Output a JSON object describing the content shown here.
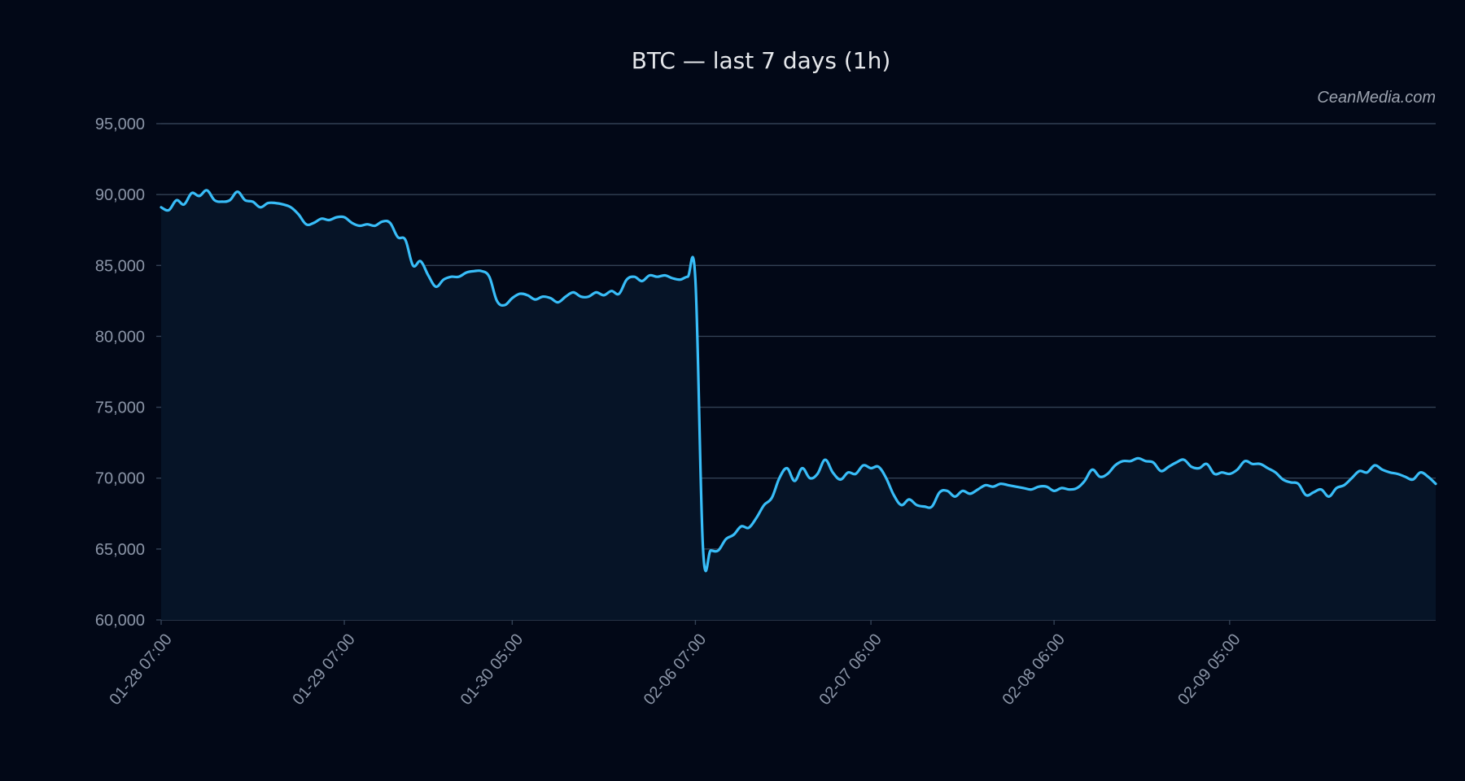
{
  "colors": {
    "background": "#020817",
    "plot_fill": "#061427",
    "line": "#38bdf8",
    "grid": "#334155",
    "tick_text": "#8b95a7",
    "title_text": "#e5e7eb",
    "watermark_text": "#9ca3af"
  },
  "watermark": "CeanMedia.com",
  "chart_data": {
    "type": "area",
    "title": "BTC — last 7 days (1h)",
    "xlabel": "",
    "ylabel": "",
    "ylim": [
      60000,
      95000
    ],
    "grid": true,
    "yticks": [
      60000,
      65000,
      70000,
      75000,
      80000,
      85000,
      90000,
      95000
    ],
    "ytick_labels": [
      "60,000",
      "65,000",
      "70,000",
      "75,000",
      "80,000",
      "85,000",
      "90,000",
      "95,000"
    ],
    "xticks": [
      {
        "index": 0,
        "label": "01-28 07:00"
      },
      {
        "index": 24,
        "label": "01-29 07:00"
      },
      {
        "index": 46,
        "label": "01-30 05:00"
      },
      {
        "index": 70,
        "label": "02-06 07:00"
      },
      {
        "index": 93,
        "label": "02-07 06:00"
      },
      {
        "index": 117,
        "label": "02-08 06:00"
      },
      {
        "index": 140,
        "label": "02-09 05:00"
      }
    ],
    "series": [
      {
        "values": [
          89100,
          88900,
          89600,
          89300,
          90100,
          89900,
          90300,
          89600,
          89500,
          89600,
          90200,
          89600,
          89500,
          89100,
          89400,
          89400,
          89300,
          89100,
          88600,
          87900,
          88000,
          88300,
          88200,
          88400,
          88400,
          88000,
          87800,
          87900,
          87800,
          88100,
          88000,
          87000,
          86800,
          85000,
          85300,
          84300,
          83500,
          84000,
          84200,
          84200,
          84500,
          84600,
          84600,
          84200,
          82500,
          82200,
          82700,
          83000,
          82900,
          82600,
          82800,
          82700,
          82400,
          82800,
          83100,
          82800,
          82800,
          83100,
          82900,
          83200,
          83000,
          84000,
          84200,
          83900,
          84300,
          84200,
          84300,
          84100,
          84000,
          84200,
          84000,
          65000,
          64900,
          64900,
          65700,
          66000,
          66600,
          66500,
          67200,
          68100,
          68600,
          70000,
          70700,
          69800,
          70700,
          70000,
          70300,
          71300,
          70400,
          69900,
          70400,
          70300,
          70900,
          70700,
          70800,
          70000,
          68800,
          68100,
          68500,
          68100,
          68000,
          68000,
          69000,
          69100,
          68700,
          69100,
          68900,
          69200,
          69500,
          69400,
          69600,
          69500,
          69400,
          69300,
          69200,
          69400,
          69400,
          69100,
          69300,
          69200,
          69300,
          69800,
          70600,
          70100,
          70300,
          70900,
          71200,
          71200,
          71400,
          71200,
          71100,
          70500,
          70800,
          71100,
          71300,
          70800,
          70700,
          71000,
          70300,
          70400,
          70300,
          70600,
          71200,
          71000,
          71000,
          70700,
          70400,
          69900,
          69700,
          69600,
          68800,
          69000,
          69200,
          68700,
          69300,
          69500,
          70000,
          70500,
          70400,
          70900,
          70600,
          70400,
          70300,
          70100,
          69900,
          70400,
          70100,
          69600
        ]
      }
    ]
  }
}
